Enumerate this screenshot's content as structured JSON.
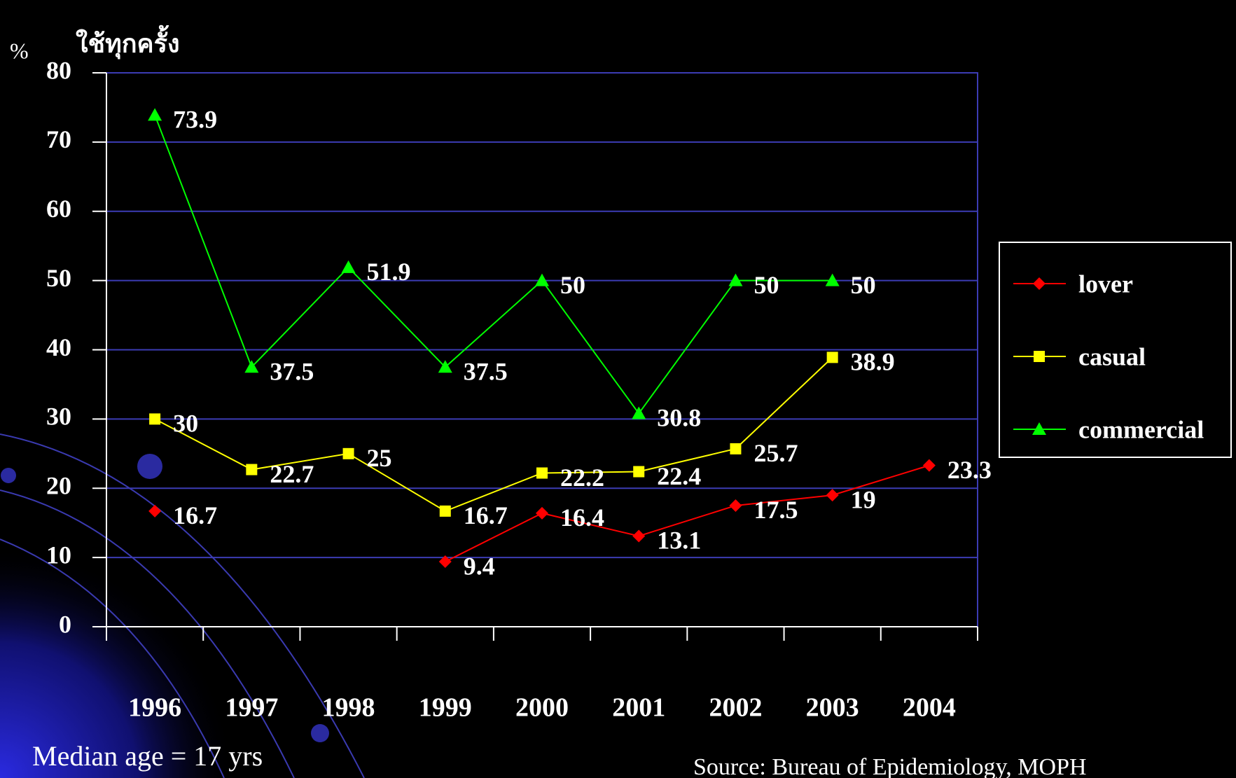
{
  "chart_data": {
    "type": "line",
    "y_unit": "%",
    "y_label": "ใช้ทุกครั้ง",
    "categories": [
      "1996",
      "1997",
      "1998",
      "1999",
      "2000",
      "2001",
      "2002",
      "2003",
      "2004"
    ],
    "series": [
      {
        "name": "lover",
        "color": "#ff0000",
        "marker": "diamond",
        "values": [
          16.7,
          null,
          null,
          9.4,
          16.4,
          13.1,
          17.5,
          19,
          23.3
        ]
      },
      {
        "name": "casual",
        "color": "#ffff00",
        "marker": "square",
        "values": [
          30,
          22.7,
          25,
          16.7,
          22.2,
          22.4,
          25.7,
          38.9,
          null
        ]
      },
      {
        "name": "commercial",
        "color": "#00ff00",
        "marker": "triangle",
        "values": [
          73.9,
          37.5,
          51.9,
          37.5,
          50,
          30.8,
          50,
          50,
          null
        ]
      }
    ],
    "ylim": [
      0,
      80
    ],
    "yticks": [
      0,
      10,
      20,
      30,
      40,
      50,
      60,
      70,
      80
    ],
    "grid": true,
    "legend": "right",
    "note": "Median age = 17 yrs",
    "source": "Source: Bureau of Epidemiology, MOPH"
  }
}
